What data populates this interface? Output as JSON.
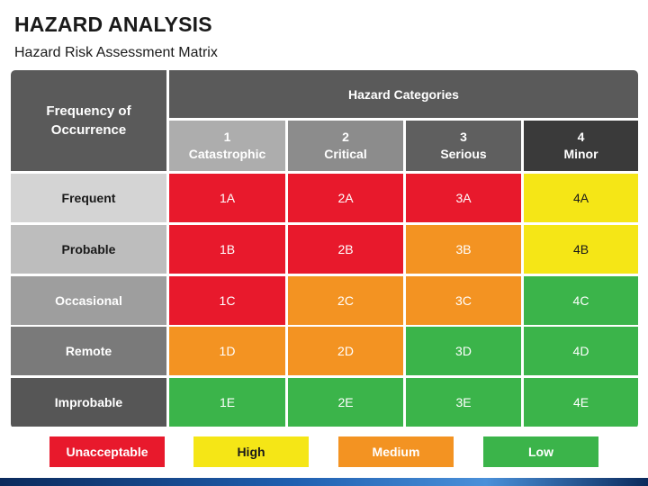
{
  "title": "HAZARD ANALYSIS",
  "subtitle": "Hazard Risk Assessment Matrix",
  "matrix": {
    "corner_label_line1": "Frequency of",
    "corner_label_line2": "Occurrence",
    "categories_header": "Hazard Categories",
    "columns": [
      {
        "number": "1",
        "label": "Catastrophic",
        "color": "#adadad"
      },
      {
        "number": "2",
        "label": "Critical",
        "color": "#8c8c8c"
      },
      {
        "number": "3",
        "label": "Serious",
        "color": "#5f5f5f"
      },
      {
        "number": "4",
        "label": "Minor",
        "color": "#3a3a3a"
      }
    ],
    "rows": [
      {
        "label": "Frequent",
        "header_color": "#d4d4d4",
        "text_color": "#1a1a1a",
        "cells": [
          {
            "code": "1A",
            "level": "unacceptable"
          },
          {
            "code": "2A",
            "level": "unacceptable"
          },
          {
            "code": "3A",
            "level": "unacceptable"
          },
          {
            "code": "4A",
            "level": "high"
          }
        ]
      },
      {
        "label": "Probable",
        "header_color": "#bdbdbd",
        "text_color": "#1a1a1a",
        "cells": [
          {
            "code": "1B",
            "level": "unacceptable"
          },
          {
            "code": "2B",
            "level": "unacceptable"
          },
          {
            "code": "3B",
            "level": "medium"
          },
          {
            "code": "4B",
            "level": "high"
          }
        ]
      },
      {
        "label": "Occasional",
        "header_color": "#9e9e9e",
        "text_color": "#ffffff",
        "cells": [
          {
            "code": "1C",
            "level": "unacceptable"
          },
          {
            "code": "2C",
            "level": "medium"
          },
          {
            "code": "3C",
            "level": "medium"
          },
          {
            "code": "4C",
            "level": "low"
          }
        ]
      },
      {
        "label": "Remote",
        "header_color": "#7a7a7a",
        "text_color": "#ffffff",
        "cells": [
          {
            "code": "1D",
            "level": "medium"
          },
          {
            "code": "2D",
            "level": "medium"
          },
          {
            "code": "3D",
            "level": "low"
          },
          {
            "code": "4D",
            "level": "low"
          }
        ]
      },
      {
        "label": "Improbable",
        "header_color": "#565656",
        "text_color": "#ffffff",
        "cells": [
          {
            "code": "1E",
            "level": "low"
          },
          {
            "code": "2E",
            "level": "low"
          },
          {
            "code": "3E",
            "level": "low"
          },
          {
            "code": "4E",
            "level": "low"
          }
        ]
      }
    ]
  },
  "levels": {
    "unacceptable": {
      "label": "Unacceptable",
      "color": "#e8192c",
      "text_color": "#ffffff"
    },
    "high": {
      "label": "High",
      "color": "#f5e616",
      "text_color": "#1a1a1a"
    },
    "medium": {
      "label": "Medium",
      "color": "#f39322",
      "text_color": "#ffffff"
    },
    "low": {
      "label": "Low",
      "color": "#3bb44a",
      "text_color": "#ffffff"
    }
  },
  "legend": [
    "unacceptable",
    "high",
    "medium",
    "low"
  ]
}
